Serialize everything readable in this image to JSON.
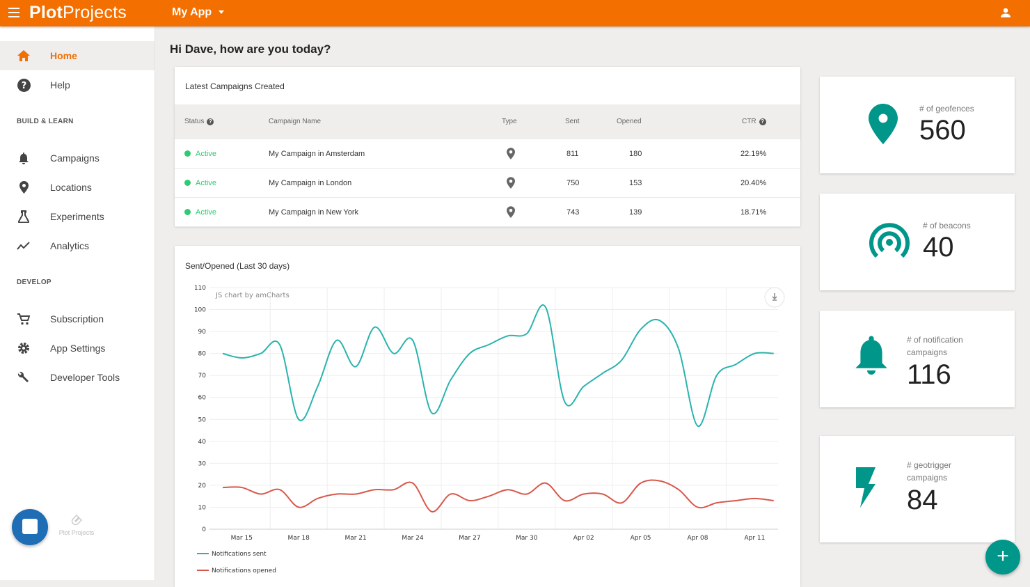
{
  "header": {
    "logo_bold": "Plot",
    "logo_rest": "Projects",
    "app_name": "My App",
    "brand_color": "#f26f00"
  },
  "sidebar": {
    "top_items": [
      {
        "label": "Home",
        "icon": "home-icon",
        "active": true
      },
      {
        "label": "Help",
        "icon": "help-icon"
      }
    ],
    "section_build": "BUILD & LEARN",
    "build_items": [
      {
        "label": "Campaigns",
        "icon": "bell-icon"
      },
      {
        "label": "Locations",
        "icon": "location-pin-icon"
      },
      {
        "label": "Experiments",
        "icon": "flask-icon"
      },
      {
        "label": "Analytics",
        "icon": "trend-icon"
      }
    ],
    "section_develop": "DEVELOP",
    "develop_items": [
      {
        "label": "Subscription",
        "icon": "cart-icon"
      },
      {
        "label": "App Settings",
        "icon": "gear-icon"
      },
      {
        "label": "Developer Tools",
        "icon": "wrench-icon"
      }
    ],
    "footer_credit": "Plot Projects"
  },
  "main": {
    "greeting": "Hi Dave, how are you today?",
    "campaigns": {
      "title": "Latest Campaigns Created",
      "columns": [
        "Status",
        "Campaign Name",
        "Type",
        "Sent",
        "Opened",
        "CTR"
      ],
      "rows": [
        {
          "status": "Active",
          "name": "My Campaign in Amsterdam",
          "type": "location-pin-icon",
          "sent": "811",
          "opened": "180",
          "ctr": "22.19%"
        },
        {
          "status": "Active",
          "name": "My Campaign in London",
          "type": "location-pin-icon",
          "sent": "750",
          "opened": "153",
          "ctr": "20.40%"
        },
        {
          "status": "Active",
          "name": "My Campaign in New York",
          "type": "location-pin-icon",
          "sent": "743",
          "opened": "139",
          "ctr": "18.71%"
        }
      ]
    },
    "chart_title": "Sent/Opened (Last 30 days)",
    "chart_credit": "JS chart by amCharts"
  },
  "stats": [
    {
      "label": "# of geofences",
      "value": "560",
      "icon": "location-pin-icon"
    },
    {
      "label": "# of beacons",
      "value": "40",
      "icon": "beacon-icon"
    },
    {
      "label": "# of notification campaigns",
      "value": "116",
      "icon": "bell-icon"
    },
    {
      "label": "# geotrigger campaigns",
      "value": "84",
      "icon": "lightning-icon"
    }
  ],
  "accent_color": "#00968a",
  "chart_data": {
    "type": "line",
    "x": [
      "Mar 14",
      "Mar 15",
      "Mar 16",
      "Mar 17",
      "Mar 18",
      "Mar 19",
      "Mar 20",
      "Mar 21",
      "Mar 22",
      "Mar 23",
      "Mar 24",
      "Mar 25",
      "Mar 26",
      "Mar 27",
      "Mar 28",
      "Mar 29",
      "Mar 30",
      "Mar 31",
      "Apr 01",
      "Apr 02",
      "Apr 03",
      "Apr 04",
      "Apr 05",
      "Apr 06",
      "Apr 07",
      "Apr 08",
      "Apr 09",
      "Apr 10",
      "Apr 11",
      "Apr 12"
    ],
    "x_tick_labels": [
      "Mar 15",
      "Mar 18",
      "Mar 21",
      "Mar 24",
      "Mar 27",
      "Mar 30",
      "Apr 02",
      "Apr 05",
      "Apr 08",
      "Apr 11"
    ],
    "y_ticks": [
      0,
      10,
      20,
      30,
      40,
      50,
      60,
      70,
      80,
      90,
      100,
      110
    ],
    "ylim": [
      0,
      110
    ],
    "grid": true,
    "legend_position": "bottom-left",
    "series": [
      {
        "name": "Notifications sent",
        "color": "#2ab3ad",
        "values": [
          80,
          78,
          80,
          84,
          50,
          65,
          86,
          74,
          92,
          80,
          86,
          53,
          68,
          80,
          84,
          88,
          89,
          101,
          58,
          65,
          71,
          77,
          91,
          95,
          82,
          47,
          70,
          75,
          80,
          80
        ]
      },
      {
        "name": "Notifications opened",
        "color": "#d9574a",
        "values": [
          19,
          19,
          16,
          18,
          10,
          14,
          16,
          16,
          18,
          18,
          21,
          8,
          16,
          13,
          15,
          18,
          16,
          21,
          13,
          16,
          16,
          12,
          21,
          22,
          18,
          10,
          12,
          13,
          14,
          13
        ]
      }
    ]
  }
}
